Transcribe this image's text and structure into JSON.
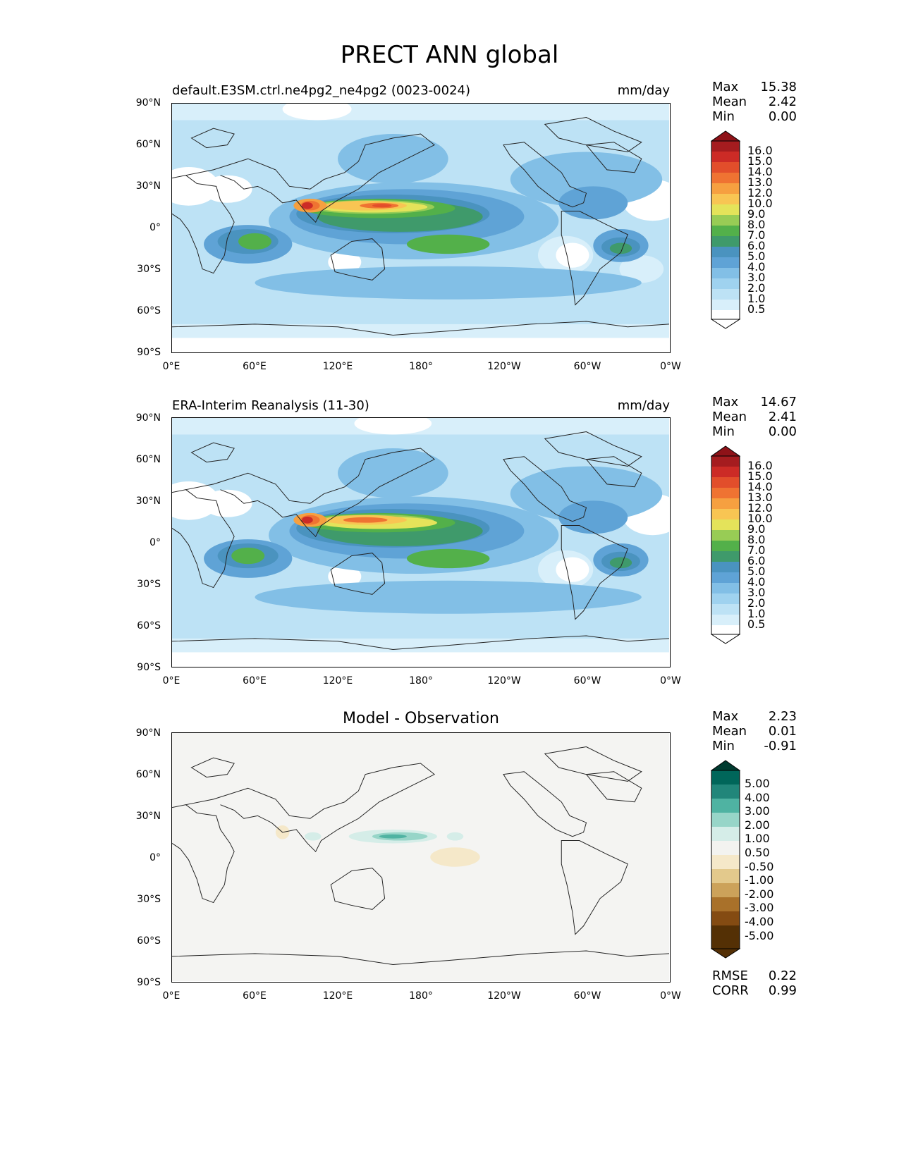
{
  "title": "PRECT ANN global",
  "lat_labels": [
    "90°N",
    "60°N",
    "30°N",
    "0°",
    "30°S",
    "60°S",
    "90°S"
  ],
  "lon_labels": [
    "0°E",
    "60°E",
    "120°E",
    "180°",
    "120°W",
    "60°W",
    "0°W"
  ],
  "panels": [
    {
      "left_title": "default.E3SM.ctrl.ne4pg2_ne4pg2 (0023-0024)",
      "right_title": "mm/day",
      "stats": [
        {
          "label": "Max",
          "value": "15.38"
        },
        {
          "label": "Mean",
          "value": "2.42"
        },
        {
          "label": "Min",
          "value": "0.00"
        }
      ],
      "colorbar_labels": [
        "16.0",
        "15.0",
        "14.0",
        "13.0",
        "12.0",
        "10.0",
        "9.0",
        "8.0",
        "7.0",
        "6.0",
        "5.0",
        "4.0",
        "3.0",
        "2.0",
        "1.0",
        "0.5"
      ]
    },
    {
      "left_title": "ERA-Interim Reanalysis (11-30)",
      "right_title": "mm/day",
      "stats": [
        {
          "label": "Max",
          "value": "14.67"
        },
        {
          "label": "Mean",
          "value": "2.41"
        },
        {
          "label": "Min",
          "value": "0.00"
        }
      ],
      "colorbar_labels": [
        "16.0",
        "15.0",
        "14.0",
        "13.0",
        "12.0",
        "10.0",
        "9.0",
        "8.0",
        "7.0",
        "6.0",
        "5.0",
        "4.0",
        "3.0",
        "2.0",
        "1.0",
        "0.5"
      ]
    },
    {
      "center_title": "Model - Observation",
      "stats": [
        {
          "label": "Max",
          "value": "2.23"
        },
        {
          "label": "Mean",
          "value": "0.01"
        },
        {
          "label": "Min",
          "value": "-0.91"
        }
      ],
      "colorbar_labels": [
        "5.00",
        "4.00",
        "3.00",
        "2.00",
        "1.00",
        "0.50",
        "-0.50",
        "-1.00",
        "-2.00",
        "-3.00",
        "-4.00",
        "-5.00"
      ],
      "extra_stats": [
        {
          "label": "RMSE",
          "value": "0.22"
        },
        {
          "label": "CORR",
          "value": "0.99"
        }
      ]
    }
  ],
  "colors": {
    "precip_scale": [
      "#ffffff",
      "#d8effa",
      "#bde2f5",
      "#9fd2ef",
      "#82bfe6",
      "#5fa3d6",
      "#4a93bf",
      "#3f9a6b",
      "#53b04a",
      "#98cc55",
      "#e4e35a",
      "#f8c553",
      "#f6a040",
      "#ef7332",
      "#e24e2b",
      "#cc2b26",
      "#a51c1f",
      "#8e1218"
    ],
    "diff_scale": [
      "#003b30",
      "#00665a",
      "#21867a",
      "#4fb3a2",
      "#97d5c8",
      "#d5ede8",
      "#f3f3f0",
      "#f5e8c9",
      "#e3c98c",
      "#cca25a",
      "#a9712a",
      "#844b12",
      "#543005"
    ],
    "ocean_diff": "#f4f4f2"
  }
}
